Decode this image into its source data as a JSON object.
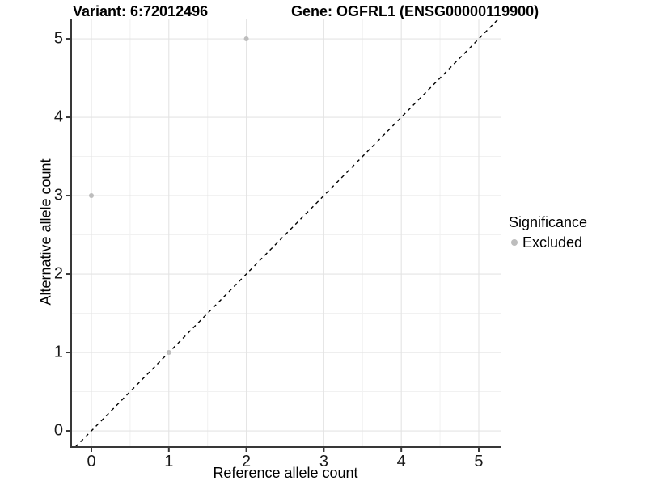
{
  "titles": {
    "variant": "Variant: 6:72012496",
    "gene": "Gene: OGFRL1 (ENSG00000119900)"
  },
  "chart_data": {
    "type": "scatter",
    "title_left": "Variant: 6:72012496",
    "title_right": "Gene: OGFRL1 (ENSG00000119900)",
    "xlabel": "Reference allele count",
    "ylabel": "Alternative allele count",
    "xlim": [
      -0.261,
      5.282
    ],
    "ylim": [
      -0.206,
      5.258
    ],
    "xticks": [
      0,
      1,
      2,
      3,
      4,
      5
    ],
    "yticks": [
      0,
      1,
      2,
      3,
      4,
      5
    ],
    "minor_grid_positions": [
      0.5,
      1.5,
      2.5,
      3.5,
      4.5
    ],
    "grid": true,
    "series": [
      {
        "name": "Excluded",
        "color": "#bdbdbd",
        "points": [
          [
            0,
            3
          ],
          [
            1,
            1
          ],
          [
            2,
            5
          ]
        ]
      }
    ],
    "reference_line": {
      "type": "identity",
      "style": "dashed",
      "color": "#000000"
    },
    "legend": {
      "title": "Significance",
      "position": "right",
      "entries": [
        {
          "label": "Excluded",
          "color": "#bdbdbd"
        }
      ]
    },
    "colors": {
      "major_grid": "#e4e4e4",
      "minor_grid": "#f1f1f1",
      "axis": "#383838",
      "point": "#bdbdbd",
      "tick_text": "#1a1a1a"
    }
  }
}
